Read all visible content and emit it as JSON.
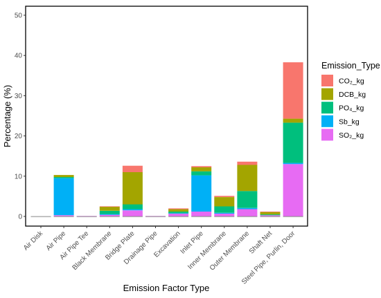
{
  "chart_data": {
    "type": "bar",
    "stacked": true,
    "title": "",
    "xlabel": "Emission Factor Type",
    "ylabel": "Percentage (%)",
    "ylim": [
      0,
      53
    ],
    "yticks": [
      0,
      10,
      20,
      30,
      40,
      50
    ],
    "grid": false,
    "legend_position": "right",
    "legend_title": "Emission_Type",
    "categories": [
      "Air Disk",
      "Air Pipe",
      "Air Pipe Tee",
      "Black Membrane",
      "Bridge Plate",
      "Drainage Pipe",
      "Excavation",
      "Inlet Pipe",
      "Inner Membrane",
      "Outer Membrane",
      "Shaft Net",
      "Steel Pipe, Purlin, Door"
    ],
    "series": [
      {
        "name": "SO₂_kg",
        "color": "#E76BF3",
        "values": [
          0.0,
          0.3,
          0.1,
          0.4,
          1.5,
          0.1,
          0.7,
          1.2,
          0.7,
          1.8,
          0.3,
          13.0
        ]
      },
      {
        "name": "Sb_kg",
        "color": "#00B0F6",
        "values": [
          0.0,
          9.2,
          0.0,
          0.2,
          0.3,
          0.0,
          0.1,
          9.0,
          0.2,
          0.3,
          0.0,
          0.3
        ]
      },
      {
        "name": "PO₄_kg",
        "color": "#00BF7D",
        "values": [
          0.0,
          0.3,
          0.0,
          0.8,
          1.2,
          0.0,
          0.4,
          1.0,
          1.6,
          4.2,
          0.2,
          10.0
        ]
      },
      {
        "name": "DCB_kg",
        "color": "#A3A500",
        "values": [
          0.0,
          0.5,
          0.0,
          1.0,
          8.0,
          0.0,
          0.6,
          1.0,
          2.3,
          6.5,
          0.6,
          1.0
        ]
      },
      {
        "name": "CO₂_kg",
        "color": "#F8766D",
        "values": [
          0.0,
          0.0,
          0.0,
          0.1,
          1.6,
          0.0,
          0.2,
          0.3,
          0.3,
          0.8,
          0.1,
          14.0
        ]
      }
    ]
  }
}
